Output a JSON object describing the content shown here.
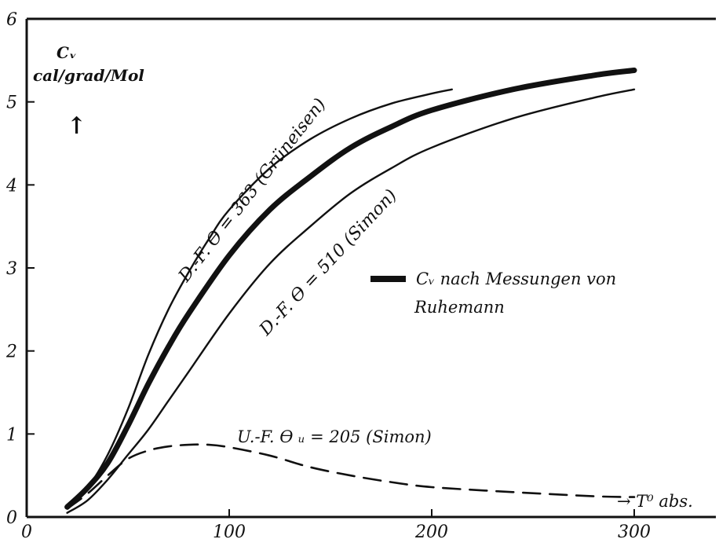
{
  "chart_data": {
    "type": "line",
    "xlim": [
      0,
      330
    ],
    "ylim": [
      0,
      6
    ],
    "x_ticks": [
      "0",
      "100",
      "200",
      "300"
    ],
    "y_ticks": [
      "0",
      "1",
      "2",
      "3",
      "4",
      "5",
      "6"
    ],
    "y_label_line1": "Cᵥ",
    "y_label_line2": "cal/grad/Mol",
    "y_label_arrow": "↑",
    "x_label": "→ T⁰ abs.",
    "legend_label_line1": "Cᵥ nach Messungen von",
    "legend_label_line2": "Ruhemann",
    "grid": false,
    "series": [
      {
        "name": "D.-F. ϴ = 363 (Grüneisen)",
        "style": "thin",
        "x": [
          20,
          30,
          40,
          50,
          60,
          70,
          80,
          90,
          100,
          120,
          140,
          160,
          180,
          200,
          210
        ],
        "y": [
          0.1,
          0.35,
          0.75,
          1.3,
          1.95,
          2.5,
          2.95,
          3.35,
          3.7,
          4.2,
          4.55,
          4.8,
          4.98,
          5.1,
          5.15
        ]
      },
      {
        "name": "Cᵥ nach Messungen von Ruhemann",
        "style": "bold",
        "x": [
          20,
          30,
          40,
          50,
          60,
          70,
          80,
          100,
          120,
          140,
          160,
          180,
          200,
          240,
          280,
          300
        ],
        "y": [
          0.12,
          0.35,
          0.65,
          1.1,
          1.6,
          2.05,
          2.45,
          3.15,
          3.7,
          4.1,
          4.45,
          4.7,
          4.9,
          5.15,
          5.32,
          5.38
        ]
      },
      {
        "name": "D.-F. ϴ = 510 (Simon)",
        "style": "thin",
        "x": [
          20,
          30,
          40,
          50,
          60,
          70,
          80,
          100,
          120,
          140,
          160,
          180,
          200,
          240,
          280,
          300
        ],
        "y": [
          0.05,
          0.2,
          0.45,
          0.75,
          1.05,
          1.4,
          1.75,
          2.45,
          3.05,
          3.5,
          3.9,
          4.2,
          4.45,
          4.8,
          5.05,
          5.15
        ]
      },
      {
        "name": "U.-F. ϴ ᵤ = 205 (Simon)",
        "style": "dashed",
        "x": [
          20,
          30,
          40,
          50,
          60,
          70,
          80,
          90,
          100,
          120,
          140,
          160,
          180,
          200,
          240,
          280,
          300
        ],
        "y": [
          0.1,
          0.28,
          0.5,
          0.7,
          0.8,
          0.85,
          0.87,
          0.87,
          0.84,
          0.74,
          0.6,
          0.5,
          0.42,
          0.36,
          0.3,
          0.25,
          0.24
        ]
      }
    ],
    "annotations": {
      "grueneisen": "D.-F. ϴ = 363 (Grüneisen)",
      "simon510": "D.-F. ϴ = 510 (Simon)",
      "simon205": "U.-F. ϴ ᵤ = 205 (Simon)"
    }
  }
}
